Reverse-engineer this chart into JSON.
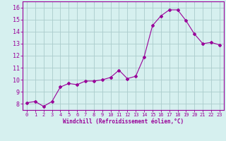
{
  "x": [
    0,
    1,
    2,
    3,
    4,
    5,
    6,
    7,
    8,
    9,
    10,
    11,
    12,
    13,
    14,
    15,
    16,
    17,
    18,
    19,
    20,
    21,
    22,
    23
  ],
  "y": [
    8.1,
    8.2,
    7.8,
    8.2,
    9.4,
    9.7,
    9.6,
    9.9,
    9.9,
    10.0,
    10.2,
    10.8,
    10.1,
    10.3,
    11.9,
    14.5,
    15.3,
    15.8,
    15.8,
    14.9,
    13.8,
    13.0,
    13.1,
    12.9
  ],
  "line_color": "#990099",
  "marker": "D",
  "marker_size": 2,
  "bg_color": "#d6f0ef",
  "grid_color": "#aacccc",
  "xlabel": "Windchill (Refroidissement éolien,°C)",
  "xlabel_color": "#990099",
  "tick_color": "#990099",
  "ylim": [
    7.5,
    16.5
  ],
  "yticks": [
    8,
    9,
    10,
    11,
    12,
    13,
    14,
    15,
    16
  ],
  "xticks": [
    0,
    1,
    2,
    3,
    4,
    5,
    6,
    7,
    8,
    9,
    10,
    11,
    12,
    13,
    14,
    15,
    16,
    17,
    18,
    19,
    20,
    21,
    22,
    23
  ],
  "spine_color": "#990099"
}
